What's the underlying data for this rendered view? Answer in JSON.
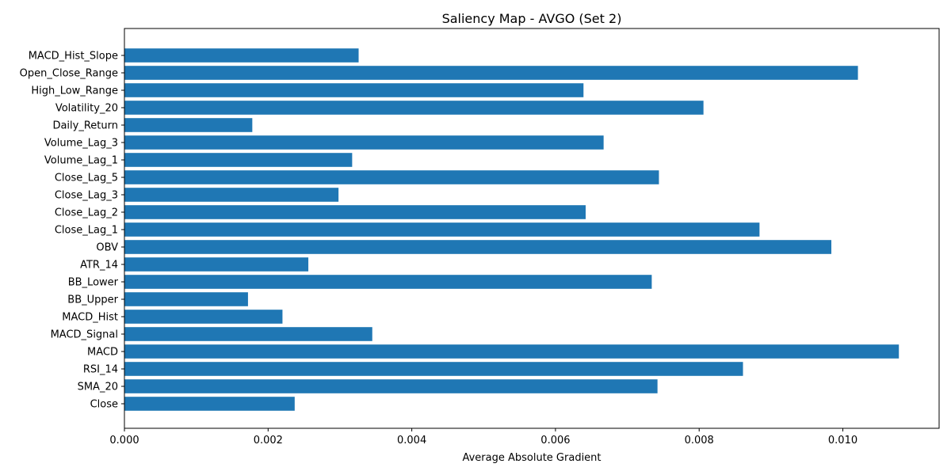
{
  "chart_data": {
    "type": "bar",
    "orientation": "horizontal",
    "title": "Saliency Map - AVGO (Set 2)",
    "xlabel": "Average Absolute Gradient",
    "ylabel": "",
    "xlim": [
      0,
      0.01134
    ],
    "xticks": [
      "0.000",
      "0.002",
      "0.004",
      "0.006",
      "0.008",
      "0.010"
    ],
    "xtick_values": [
      0.0,
      0.002,
      0.004,
      0.006,
      0.008,
      0.01
    ],
    "grid": false,
    "bar_color": "#1f77b4",
    "categories": [
      "Close",
      "SMA_20",
      "RSI_14",
      "MACD",
      "MACD_Signal",
      "MACD_Hist",
      "BB_Upper",
      "BB_Lower",
      "ATR_14",
      "OBV",
      "Close_Lag_1",
      "Close_Lag_2",
      "Close_Lag_3",
      "Close_Lag_5",
      "Volume_Lag_1",
      "Volume_Lag_3",
      "Daily_Return",
      "Volatility_20",
      "High_Low_Range",
      "Open_Close_Range",
      "MACD_Hist_Slope"
    ],
    "values": [
      0.00237,
      0.00742,
      0.00861,
      0.01078,
      0.00345,
      0.0022,
      0.00172,
      0.00734,
      0.00256,
      0.00984,
      0.00884,
      0.00642,
      0.00298,
      0.00744,
      0.00317,
      0.00667,
      0.00178,
      0.00806,
      0.00639,
      0.01021,
      0.00326
    ]
  }
}
